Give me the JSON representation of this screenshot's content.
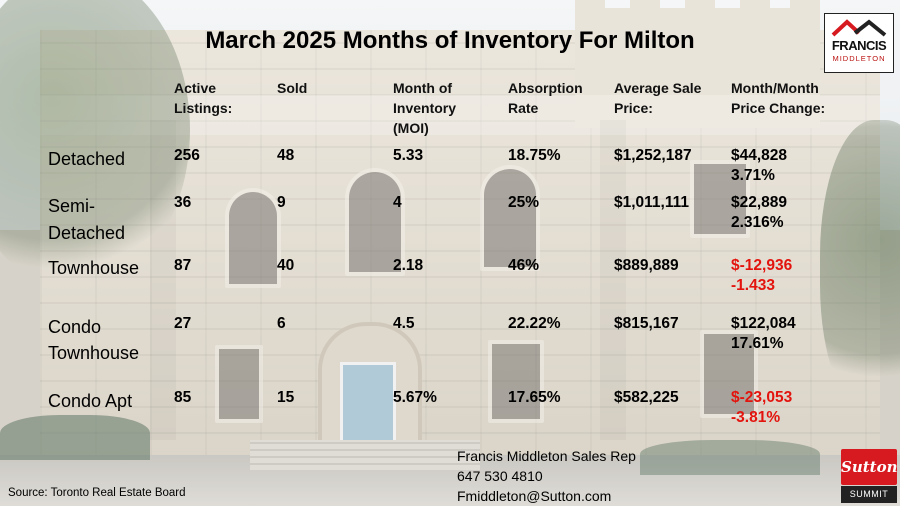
{
  "title": "March 2025 Months of Inventory For Milton",
  "columns": {
    "active": [
      "Active",
      "Listings:"
    ],
    "sold": [
      "Sold"
    ],
    "moi": [
      "Month of",
      "Inventory",
      "(MOI)"
    ],
    "absorption": [
      "Absorption",
      "Rate"
    ],
    "avg_price": [
      "Average Sale",
      "Price:"
    ],
    "mom": [
      "Month/Month",
      "Price Change:"
    ]
  },
  "rows": [
    {
      "label": [
        "Detached"
      ],
      "active": "256",
      "sold": "48",
      "moi": "5.33",
      "absorption": "18.75%",
      "avg_price": "$1,252,187",
      "mom_amount": "$44,828",
      "mom_pct": "3.71%",
      "negative": false
    },
    {
      "label": [
        "Semi-",
        "Detached"
      ],
      "active": "36",
      "sold": "9",
      "moi": "4",
      "absorption": "25%",
      "avg_price": "$1,011,111",
      "mom_amount": "$22,889",
      "mom_pct": "2.316%",
      "negative": false
    },
    {
      "label": [
        "Townhouse"
      ],
      "active": "87",
      "sold": "40",
      "moi": "2.18",
      "absorption": "46%",
      "avg_price": "$889,889",
      "mom_amount": "$-12,936",
      "mom_pct": "-1.433",
      "negative": true
    },
    {
      "label": [
        "Condo",
        "Townhouse"
      ],
      "active": "27",
      "sold": "6",
      "moi": "4.5",
      "absorption": "22.22%",
      "avg_price": "$815,167",
      "mom_amount": "$122,084",
      "mom_pct": "17.61%",
      "negative": false
    },
    {
      "label": [
        "Condo Apt"
      ],
      "active": "85",
      "sold": "15",
      "moi": "5.67%",
      "absorption": "17.65%",
      "avg_price": "$582,225",
      "mom_amount": "$-23,053",
      "mom_pct": "-3.81%",
      "negative": true
    }
  ],
  "contact": {
    "name": "Francis Middleton Sales Rep",
    "phone": "647 530 4810",
    "email": "Fmiddleton@Sutton.com"
  },
  "source": "Source: Toronto Real Estate Board",
  "logos": {
    "francis": {
      "name": "FRANCIS",
      "sub": "MIDDLETON"
    },
    "sutton": {
      "name": "Sutton",
      "sub": "SUMMIT"
    }
  },
  "colors": {
    "negative": "#e3140e",
    "text": "#000000",
    "brand_red": "#d61a20"
  }
}
